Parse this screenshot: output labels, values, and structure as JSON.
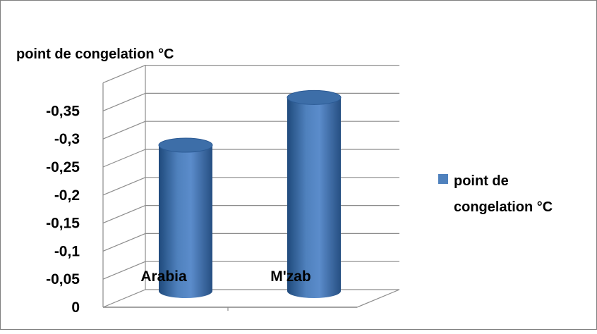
{
  "chart_data": {
    "type": "bar",
    "variant": "3d-cylinder",
    "title": "point de congelation °C",
    "categories": [
      "Arabia",
      "M'zab"
    ],
    "series": [
      {
        "name": "point de congelation °C",
        "values": [
          -0.26,
          -0.345
        ],
        "color": "#4F81BD"
      }
    ],
    "y_ticks": [
      "0",
      "-0,05",
      "-0,1",
      "-0,15",
      "-0,2",
      "-0,25",
      "-0,3",
      "-0,35"
    ],
    "ylim": [
      0,
      -0.4
    ],
    "grid": true,
    "legend_position": "right",
    "xlabel": "",
    "ylabel": ""
  },
  "colors": {
    "bar_fill": "#4F81BD",
    "bar_dark": "#2E5A8E",
    "bar_top": "#3D6EA8",
    "grid": "#8c8c8c",
    "axis": "#8c8c8c"
  }
}
